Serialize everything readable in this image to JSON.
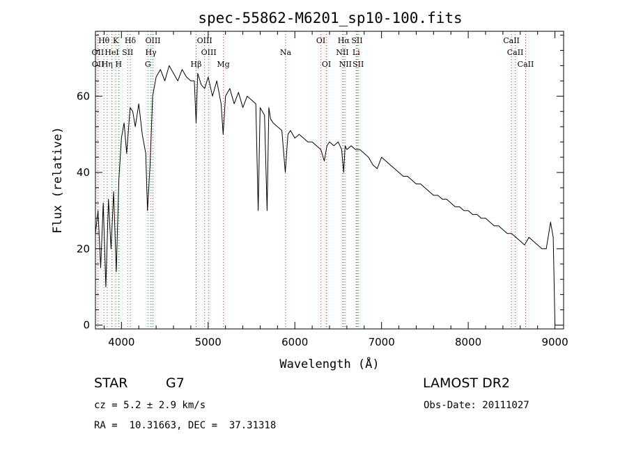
{
  "chart_data": {
    "type": "line",
    "title": "spec-55862-M6201_sp10-100.fits",
    "xlabel": "Wavelength (Å)",
    "ylabel": "Flux (relative)",
    "xlim": [
      3700,
      9100
    ],
    "ylim": [
      -1,
      77
    ],
    "x_ticks": [
      4000,
      5000,
      6000,
      7000,
      8000,
      9000
    ],
    "y_ticks": [
      0,
      20,
      40,
      60
    ],
    "grid": false,
    "series": [
      {
        "color": "#000000",
        "x": [
          3700,
          3730,
          3760,
          3790,
          3820,
          3850,
          3880,
          3910,
          3940,
          3970,
          4000,
          4030,
          4060,
          4100,
          4130,
          4160,
          4200,
          4240,
          4280,
          4300,
          4330,
          4360,
          4400,
          4450,
          4500,
          4550,
          4600,
          4650,
          4700,
          4750,
          4800,
          4840,
          4861,
          4880,
          4920,
          4960,
          5000,
          5050,
          5100,
          5150,
          5173,
          5200,
          5250,
          5300,
          5350,
          5400,
          5450,
          5500,
          5550,
          5577,
          5600,
          5650,
          5680,
          5700,
          5720,
          5750,
          5800,
          5850,
          5890,
          5920,
          5950,
          6000,
          6050,
          6100,
          6150,
          6200,
          6250,
          6300,
          6340,
          6370,
          6400,
          6450,
          6500,
          6540,
          6563,
          6580,
          6600,
          6650,
          6700,
          6750,
          6800,
          6850,
          6900,
          6950,
          7000,
          7050,
          7100,
          7150,
          7200,
          7250,
          7300,
          7350,
          7400,
          7450,
          7500,
          7550,
          7600,
          7650,
          7700,
          7750,
          7800,
          7850,
          7900,
          7950,
          8000,
          8050,
          8100,
          8150,
          8200,
          8250,
          8300,
          8350,
          8400,
          8450,
          8500,
          8550,
          8600,
          8650,
          8700,
          8750,
          8800,
          8850,
          8900,
          8950,
          8980,
          9000,
          9020
        ],
        "y": [
          24,
          30,
          15,
          32,
          10,
          33,
          20,
          35,
          14,
          38,
          49,
          53,
          45,
          57,
          56,
          52,
          58,
          50,
          45,
          30,
          42,
          60,
          65,
          67,
          64,
          68,
          66,
          64,
          67,
          65,
          64,
          64,
          53,
          66,
          63,
          62,
          65,
          60,
          64,
          58,
          50,
          60,
          62,
          58,
          61,
          57,
          60,
          59,
          58,
          30,
          57,
          55,
          30,
          57,
          54,
          53,
          52,
          51,
          40,
          50,
          51,
          49,
          50,
          49,
          48,
          48,
          47,
          46,
          43,
          47,
          48,
          47,
          48,
          46,
          40,
          47,
          46,
          47,
          46,
          46,
          45,
          44,
          42,
          41,
          44,
          43,
          42,
          41,
          40,
          39,
          39,
          38,
          37,
          37,
          36,
          35,
          34,
          34,
          33,
          33,
          32,
          31,
          31,
          30,
          30,
          29,
          29,
          28,
          28,
          27,
          26,
          26,
          25,
          24,
          24,
          23,
          22,
          21,
          23,
          22,
          21,
          20,
          20,
          27,
          23,
          0,
          0
        ]
      }
    ],
    "spectral_lines": [
      {
        "label": "Hθ",
        "x": 3798,
        "row": 1
      },
      {
        "label": "K",
        "x": 3934,
        "row": 1
      },
      {
        "label": "Hδ",
        "x": 4102,
        "row": 1
      },
      {
        "label": "OIII",
        "x": 4363,
        "row": 1
      },
      {
        "label": "OIII",
        "x": 4959,
        "row": 1
      },
      {
        "label": "OI",
        "x": 6300,
        "row": 1
      },
      {
        "label": "Hα",
        "x": 6563,
        "row": 1
      },
      {
        "label": "SII",
        "x": 6717,
        "row": 1
      },
      {
        "label": "CaII",
        "x": 8498,
        "row": 1
      },
      {
        "label": "OII",
        "x": 3727,
        "row": 2
      },
      {
        "label": "HeI",
        "x": 3889,
        "row": 2
      },
      {
        "label": "SII",
        "x": 4072,
        "row": 2
      },
      {
        "label": "Hγ",
        "x": 4340,
        "row": 2
      },
      {
        "label": "OIII",
        "x": 5007,
        "row": 2
      },
      {
        "label": "Na",
        "x": 5893,
        "row": 2
      },
      {
        "label": "NII",
        "x": 6548,
        "row": 2
      },
      {
        "label": "Li",
        "x": 6708,
        "row": 2
      },
      {
        "label": "CaII",
        "x": 8542,
        "row": 2
      },
      {
        "label": "OII",
        "x": 3729,
        "row": 3
      },
      {
        "label": "Hη",
        "x": 3835,
        "row": 3
      },
      {
        "label": "H",
        "x": 3968,
        "row": 3
      },
      {
        "label": "G",
        "x": 4305,
        "row": 3
      },
      {
        "label": "Hβ",
        "x": 4861,
        "row": 3
      },
      {
        "label": "Mg",
        "x": 5175,
        "row": 3
      },
      {
        "label": "OI",
        "x": 6364,
        "row": 3
      },
      {
        "label": "NII",
        "x": 6583,
        "row": 3
      },
      {
        "label": "SII",
        "x": 6731,
        "row": 3
      },
      {
        "label": "CaII",
        "x": 8662,
        "row": 3
      }
    ]
  },
  "info": {
    "object_class": "STAR",
    "subclass": "G7",
    "cz": "cz = 5.2 ± 2.9 km/s",
    "coords": "RA =  10.31663, DEC =  37.31318",
    "survey": "LAMOST DR2",
    "obs_date": "Obs-Date: 20111027"
  },
  "colors": {
    "spectrum": "#000000",
    "marker_lines": "#cc3333",
    "frame": "#000000"
  }
}
